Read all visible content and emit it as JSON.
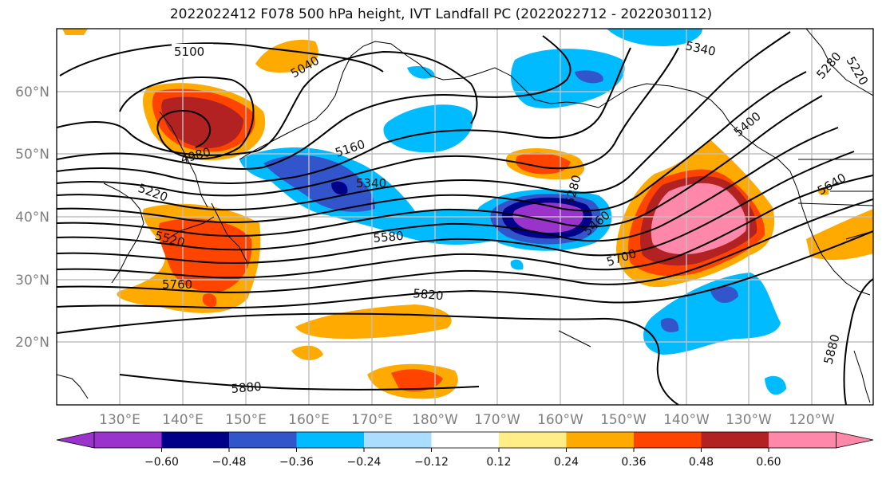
{
  "title": "2022022412 F078 500 hPa height, IVT Landfall PC (2022022712 - 2022030112)",
  "lon_ticks": [
    "130°E",
    "140°E",
    "150°E",
    "160°E",
    "170°E",
    "180°W",
    "170°W",
    "160°W",
    "150°W",
    "140°W",
    "130°W",
    "120°W"
  ],
  "lat_ticks": [
    "60°N",
    "50°N",
    "40°N",
    "30°N",
    "20°N"
  ],
  "colorbar": {
    "colors": [
      "#9933cc",
      "#000088",
      "#3355cc",
      "#00bbff",
      "#aaddff",
      "#ffffff",
      "#ffee88",
      "#ffaa00",
      "#ff4400",
      "#b22222",
      "#ff88aa"
    ],
    "ticks": [
      "−0.60",
      "−0.48",
      "−0.36",
      "−0.24",
      "−0.12",
      "0.12",
      "0.24",
      "0.36",
      "0.48",
      "0.60"
    ]
  },
  "contour_labels": [
    "5100",
    "5040",
    "5340",
    "5280",
    "5220",
    "4980",
    "5160",
    "5340",
    "5220",
    "5280",
    "5400",
    "5640",
    "5520",
    "5580",
    "5460",
    "5700",
    "5760",
    "5820",
    "5880",
    "5880"
  ]
}
